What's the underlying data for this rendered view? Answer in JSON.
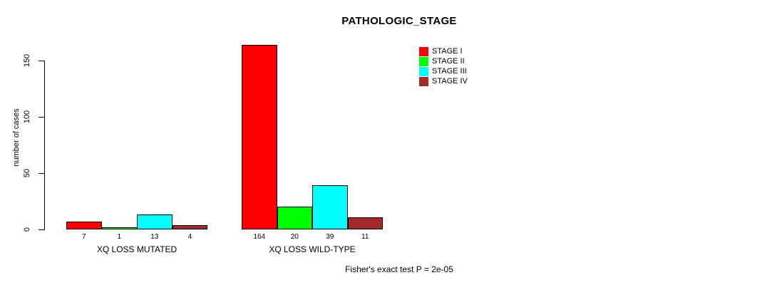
{
  "title": "PATHOLOGIC_STAGE",
  "footer": "Fisher's exact test P = 2e-05",
  "chart_data": {
    "type": "bar",
    "title": "PATHOLOGIC_STAGE",
    "xlabel": "",
    "ylabel": "number of cases",
    "ylim": [
      0,
      150
    ],
    "yticks": [
      0,
      50,
      100,
      150
    ],
    "grid": false,
    "legend_position": "top-right",
    "categories": [
      "XQ LOSS MUTATED",
      "XQ LOSS WILD-TYPE"
    ],
    "series": [
      {
        "name": "STAGE I",
        "color": "#FF0000",
        "values": [
          7,
          164
        ]
      },
      {
        "name": "STAGE II",
        "color": "#00FF00",
        "values": [
          1,
          20
        ]
      },
      {
        "name": "STAGE III",
        "color": "#00FFFF",
        "values": [
          13,
          39
        ]
      },
      {
        "name": "STAGE IV",
        "color": "#A52A2A",
        "values": [
          4,
          11
        ]
      }
    ],
    "bar_value_labels_shown": true,
    "bar_border_color": "#000000",
    "annotation": "Fisher's exact test P = 2e-05"
  }
}
